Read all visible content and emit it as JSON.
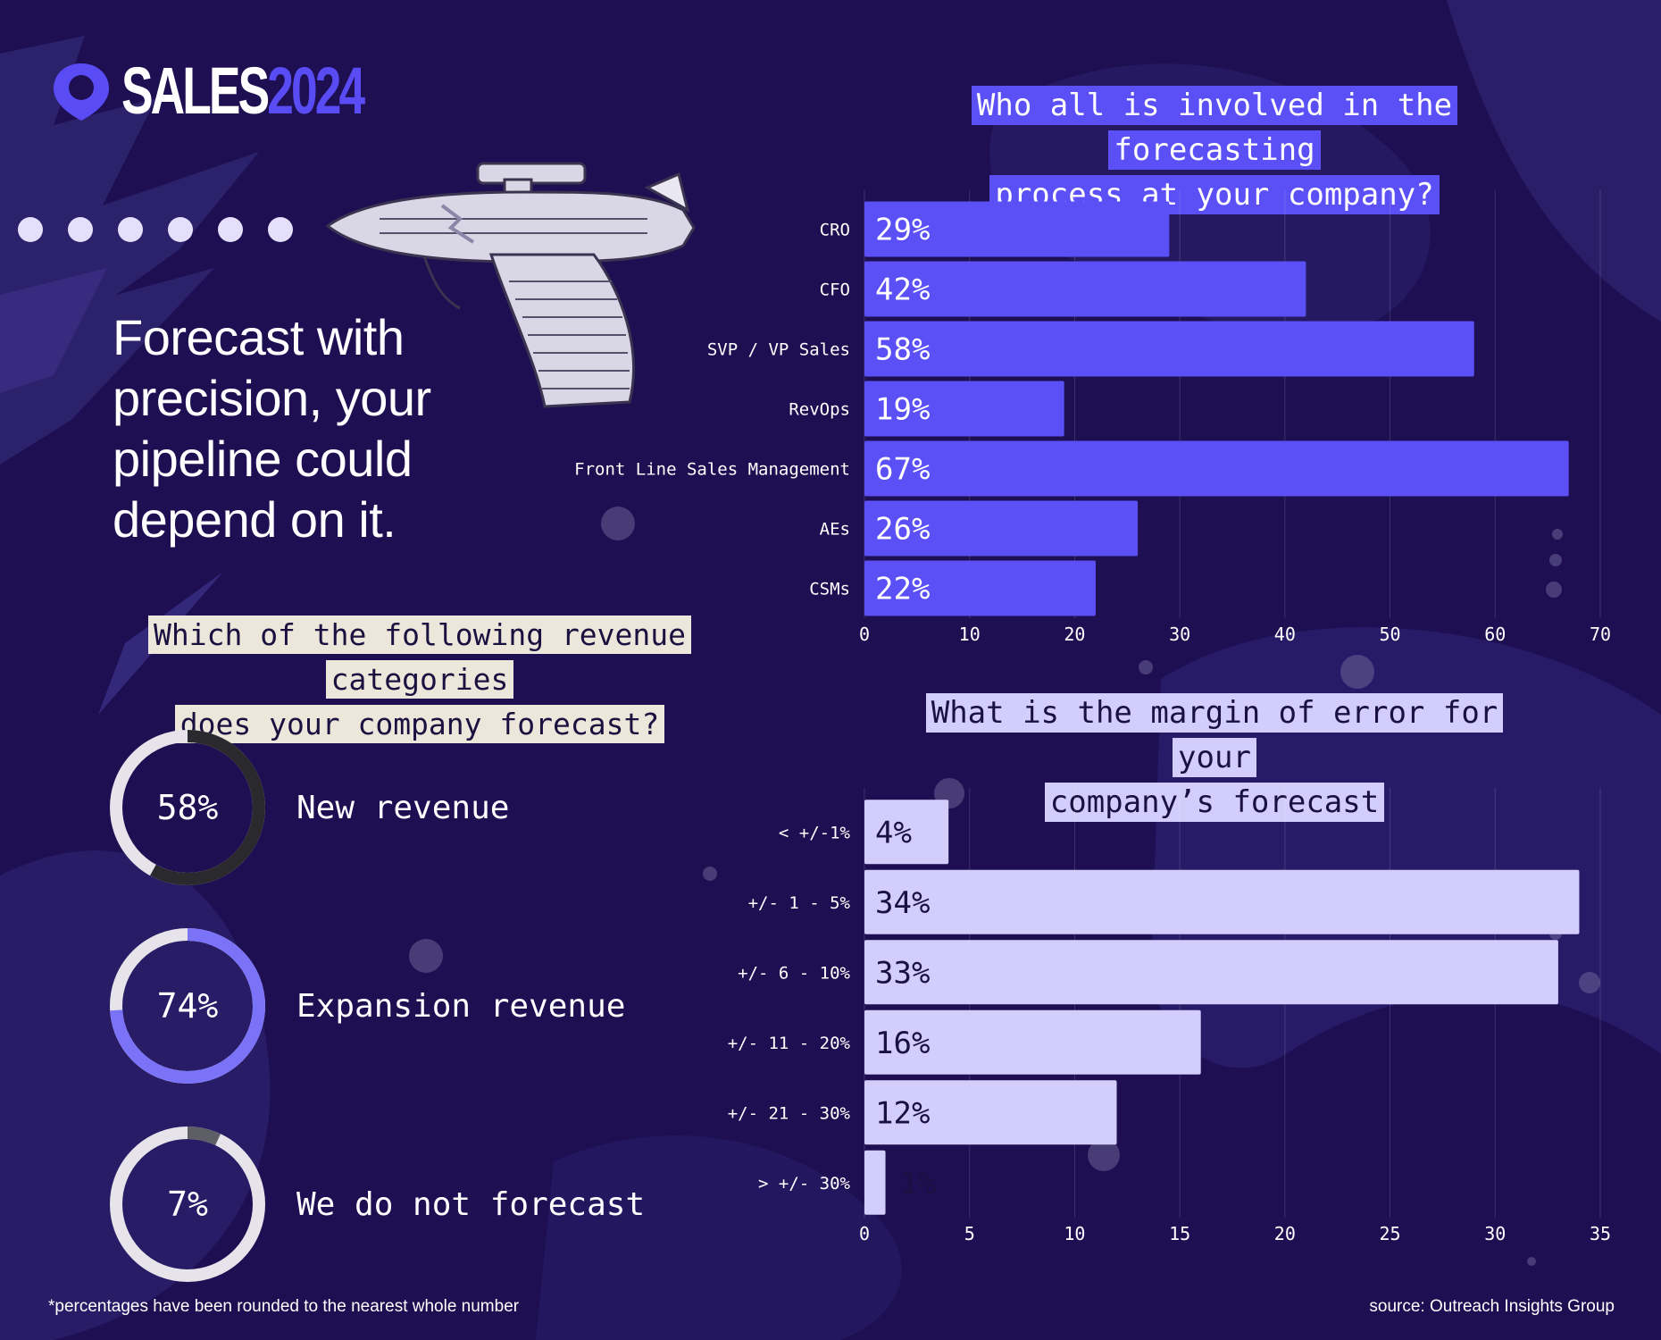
{
  "colors": {
    "background": "#1d0f52",
    "accent": "#5b4ff6",
    "bar_primary": "#5b4ff6",
    "bar_secondary": "#d3cdfb",
    "donut_track": "#e6e4ea",
    "donut_dark": "#2a2a2e",
    "donut_purple": "#7b73f7",
    "donut_gray": "#5e5e66"
  },
  "brand": {
    "name": "SALES",
    "year": "2024"
  },
  "headline": "Forecast with precision, your pipeline could depend on it.",
  "footnote": "*percentages have been rounded to the nearest whole number",
  "source": "source: Outreach Insights Group",
  "revenue_question": {
    "lines": [
      "Which of the following revenue categories",
      "does your company forecast?"
    ]
  },
  "involved_question": {
    "lines": [
      "Who all is involved in the forecasting",
      "process at your company?"
    ]
  },
  "margin_question": {
    "lines": [
      "What is the margin of error for your",
      "company’s forecast"
    ]
  },
  "chart_data": [
    {
      "type": "bar",
      "orientation": "horizontal",
      "title": "Who all is involved in the forecasting process at your company?",
      "categories": [
        "CRO",
        "CFO",
        "SVP / VP Sales",
        "RevOps",
        "Front Line Sales Management",
        "AEs",
        "CSMs"
      ],
      "values": [
        29,
        42,
        58,
        19,
        67,
        26,
        22
      ],
      "value_labels": [
        "29%",
        "42%",
        "58%",
        "19%",
        "67%",
        "26%",
        "22%"
      ],
      "xlim": [
        0,
        70
      ],
      "xticks": [
        0,
        10,
        20,
        30,
        40,
        50,
        60,
        70
      ],
      "grid": true
    },
    {
      "type": "bar",
      "orientation": "horizontal",
      "title": "What is the margin of error for your company’s forecast",
      "categories": [
        "< +/-1%",
        "+/- 1 - 5%",
        "+/- 6 - 10%",
        "+/- 11 - 20%",
        "+/- 21 - 30%",
        "> +/- 30%"
      ],
      "values": [
        4,
        34,
        33,
        16,
        12,
        1
      ],
      "value_labels": [
        "4%",
        "34%",
        "33%",
        "16%",
        "12%",
        "1%"
      ],
      "xlim": [
        0,
        35
      ],
      "xticks": [
        0,
        5,
        10,
        15,
        20,
        25,
        30,
        35
      ],
      "grid": true
    },
    {
      "type": "pie",
      "variant": "donut",
      "title": "Which of the following revenue categories does your company forecast?",
      "items": [
        {
          "label": "New revenue",
          "value": 58,
          "display": "58%",
          "color": "#2a2a2e"
        },
        {
          "label": "Expansion revenue",
          "value": 74,
          "display": "74%",
          "color": "#7b73f7"
        },
        {
          "label": "We do not forecast",
          "value": 7,
          "display": "7%",
          "color": "#5e5e66"
        }
      ]
    }
  ]
}
